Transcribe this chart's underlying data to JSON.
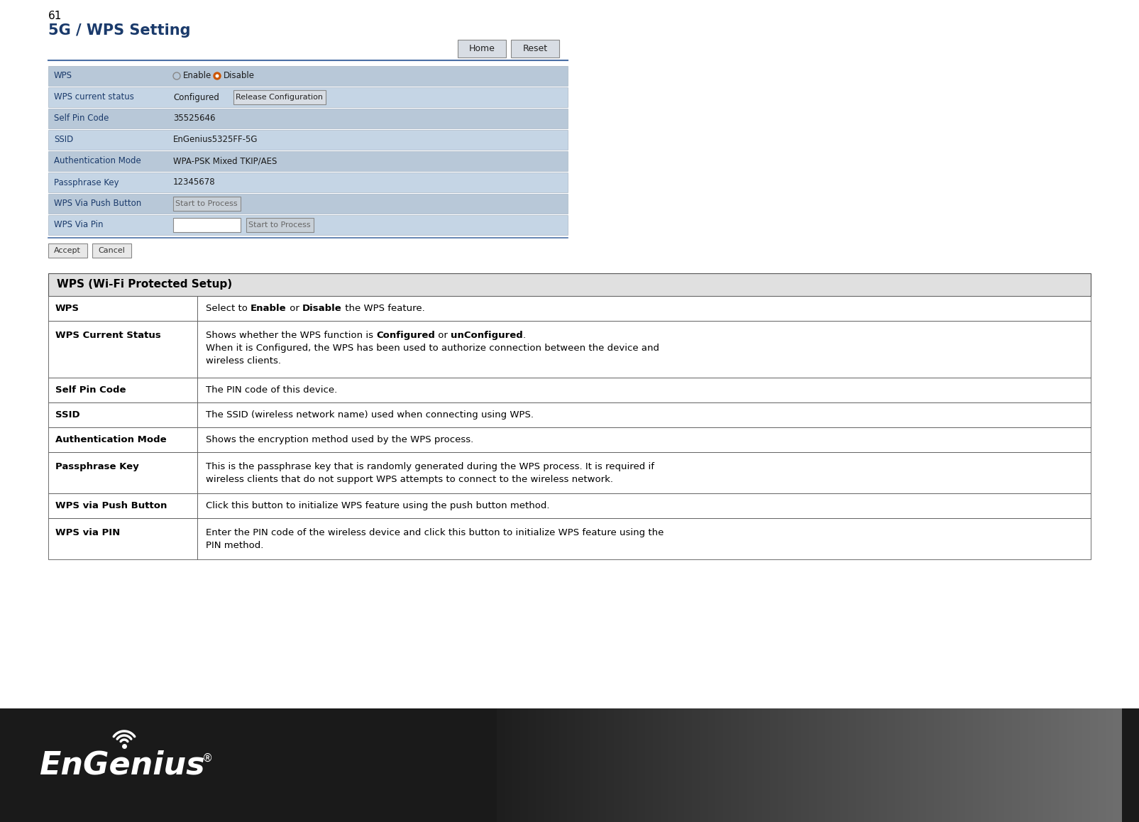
{
  "page_number": "61",
  "title": "5G / WPS Setting",
  "title_color": "#1a3a6b",
  "bg_color": "#ffffff",
  "ui_table": {
    "rows": [
      {
        "label": "WPS",
        "value": "radio_enable_disable"
      },
      {
        "label": "WPS current status",
        "value": "configured_release"
      },
      {
        "label": "Self Pin Code",
        "value": "35525646"
      },
      {
        "label": "SSID",
        "value": "EnGenius5325FF-5G"
      },
      {
        "label": "Authentication Mode",
        "value": "WPA-PSK Mixed TKIP/AES"
      },
      {
        "label": "Passphrase Key",
        "value": "12345678"
      },
      {
        "label": "WPS Via Push Button",
        "value": "btn_start_process"
      },
      {
        "label": "WPS Via Pin",
        "value": "input_start_process"
      }
    ],
    "row_bg_alt": "#b8c8d8",
    "row_bg_main": "#c5d5e5",
    "label_color": "#1a3a6b",
    "border_color": "#9aaabb"
  },
  "desc_table": {
    "header": "WPS (Wi-Fi Protected Setup)",
    "header_bg": "#e0e0e0",
    "border_color": "#555555",
    "rows": [
      {
        "label": "WPS",
        "value_parts": [
          {
            "text": "Select to ",
            "bold": false
          },
          {
            "text": "Enable",
            "bold": true
          },
          {
            "text": " or ",
            "bold": false
          },
          {
            "text": "Disable",
            "bold": true
          },
          {
            "text": " the WPS feature.",
            "bold": false
          }
        ],
        "multiline": false
      },
      {
        "label": "WPS Current Status",
        "line1_parts": [
          {
            "text": "Shows whether the WPS function is ",
            "bold": false
          },
          {
            "text": "Configured",
            "bold": true
          },
          {
            "text": " or ",
            "bold": false
          },
          {
            "text": "unConfigured",
            "bold": true
          },
          {
            "text": ".",
            "bold": false
          }
        ],
        "line2": "When it is Configured, the WPS has been used to authorize connection between the device and",
        "line3": "wireless clients.",
        "multiline": true
      },
      {
        "label": "Self Pin Code",
        "value_parts": [
          {
            "text": "The PIN code of this device.",
            "bold": false
          }
        ],
        "multiline": false
      },
      {
        "label": "SSID",
        "value_parts": [
          {
            "text": "The SSID (wireless network name) used when connecting using WPS.",
            "bold": false
          }
        ],
        "multiline": false
      },
      {
        "label": "Authentication Mode",
        "value_parts": [
          {
            "text": "Shows the encryption method used by the WPS process.",
            "bold": false
          }
        ],
        "multiline": false
      },
      {
        "label": "Passphrase Key",
        "line1": "This is the passphrase key that is randomly generated during the WPS process. It is required if",
        "line2": "wireless clients that do not support WPS attempts to connect to the wireless network.",
        "multiline": true,
        "value_parts": [
          {
            "text": "This is the passphrase key that is randomly generated during the WPS process. It is required if wireless clients that do not support WPS attempts to connect to the wireless network.",
            "bold": false
          }
        ]
      },
      {
        "label": "WPS via Push Button",
        "value_parts": [
          {
            "text": "Click this button to initialize WPS feature using the push button method.",
            "bold": false
          }
        ],
        "multiline": false
      },
      {
        "label": "WPS via PIN",
        "line1": "Enter the PIN code of the wireless device and click this button to initialize WPS feature using the",
        "line2": "PIN method.",
        "multiline": true,
        "value_parts": [
          {
            "text": "Enter the PIN code of the wireless device and click this button to initialize WPS feature using the PIN method.",
            "bold": false
          }
        ]
      }
    ]
  }
}
